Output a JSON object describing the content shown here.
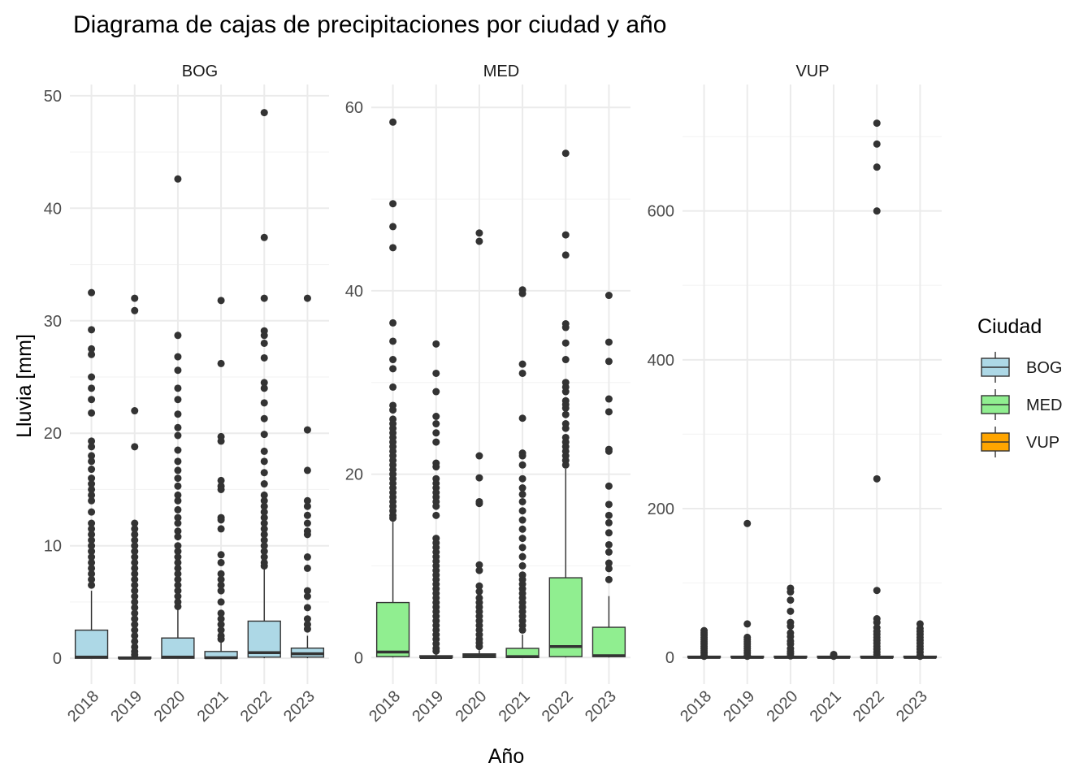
{
  "chart_data": {
    "type": "boxplot",
    "title": "Diagrama de cajas de precipitaciones por ciudad y año",
    "xlabel": "Año",
    "ylabel": "Lluvia [mm]",
    "years": [
      "2018",
      "2019",
      "2020",
      "2021",
      "2022",
      "2023"
    ],
    "facet_scales": "free_y",
    "grid": true,
    "legend": {
      "title": "Ciudad",
      "position": "right",
      "entries": [
        {
          "label": "BOG",
          "color": "#ADD8E6"
        },
        {
          "label": "MED",
          "color": "#90EE90"
        },
        {
          "label": "VUP",
          "color": "#FFA500"
        }
      ]
    },
    "panels": [
      {
        "city": "BOG",
        "fill": "#ADD8E6",
        "ylim": [
          -2.3,
          51
        ],
        "yticks": [
          0,
          10,
          20,
          30,
          40,
          50
        ],
        "boxes": [
          {
            "year": "2018",
            "q1": 0,
            "median": 0.1,
            "q3": 2.5,
            "whisker_low": 0,
            "whisker_high": 6,
            "outliers": [
              32.5,
              29.2,
              27.5,
              27,
              25,
              24,
              23,
              21.8,
              19.3,
              18.8,
              18,
              17.5,
              16.8,
              16,
              15.5,
              15,
              14.5,
              14,
              13,
              12,
              11.5,
              11,
              10.5,
              10,
              9.5,
              9,
              8.5,
              8,
              7.5,
              7,
              6.5
            ]
          },
          {
            "year": "2019",
            "q1": 0,
            "median": 0,
            "q3": 0.1,
            "whisker_low": 0,
            "whisker_high": 0.2,
            "outliers": [
              32,
              30.9,
              22,
              18.8,
              12,
              11.5,
              11,
              10.5,
              10,
              9.5,
              9,
              8.5,
              8,
              7.5,
              7,
              6.5,
              6,
              5.5,
              5,
              4.5,
              4,
              3.5,
              3,
              2.5,
              2,
              1.5,
              1,
              0.6,
              0.3
            ]
          },
          {
            "year": "2020",
            "q1": 0,
            "median": 0.1,
            "q3": 1.8,
            "whisker_low": 0,
            "whisker_high": 4.4,
            "outliers": [
              42.6,
              28.7,
              26.8,
              25.6,
              24,
              23,
              21.7,
              20.5,
              19.8,
              18.5,
              17.5,
              16.7,
              16,
              15.3,
              14.5,
              14,
              13.2,
              12.5,
              12,
              11.3,
              10.8,
              10,
              9.5,
              9,
              8.5,
              8,
              7.5,
              7,
              6.5,
              6,
              5.5,
              5,
              4.6
            ]
          },
          {
            "year": "2021",
            "q1": 0,
            "median": 0.05,
            "q3": 0.6,
            "whisker_low": 0,
            "whisker_high": 1.5,
            "outliers": [
              31.8,
              26.2,
              19.7,
              19.3,
              15.8,
              15.3,
              15,
              12.5,
              12.3,
              11.5,
              9.2,
              8.5,
              7.5,
              7,
              6.5,
              6,
              5,
              4,
              3.5,
              3,
              2.5,
              2,
              1.7
            ]
          },
          {
            "year": "2022",
            "q1": 0.1,
            "median": 0.5,
            "q3": 3.3,
            "whisker_low": 0,
            "whisker_high": 8,
            "outliers": [
              48.5,
              37.4,
              32,
              29.1,
              28.7,
              28,
              26.7,
              24.5,
              24,
              22.7,
              21.3,
              19.9,
              18.4,
              17.5,
              16.5,
              15.5,
              14.5,
              14,
              13.5,
              13,
              12.5,
              12,
              11.5,
              11,
              10.5,
              10,
              9.5,
              9,
              8.5,
              8.2
            ]
          },
          {
            "year": "2023",
            "q1": 0.1,
            "median": 0.4,
            "q3": 0.9,
            "whisker_low": 0,
            "whisker_high": 2,
            "outliers": [
              32,
              20.3,
              16.7,
              14,
              13.5,
              12.7,
              12,
              11.3,
              11,
              9,
              8,
              6,
              5.5,
              4.5,
              3.5,
              3,
              2.6
            ]
          }
        ]
      },
      {
        "city": "MED",
        "fill": "#90EE90",
        "ylim": [
          -2.9,
          62.5
        ],
        "yticks": [
          0,
          20,
          40,
          60
        ],
        "boxes": [
          {
            "year": "2018",
            "q1": 0.1,
            "median": 0.6,
            "q3": 6,
            "whisker_low": 0,
            "whisker_high": 14.8,
            "outliers": [
              58.4,
              49.5,
              47,
              44.7,
              36.5,
              34.5,
              32.5,
              31.5,
              29.5,
              27.5,
              27,
              26,
              25.5,
              25,
              24.5,
              24,
              23.5,
              23,
              22.5,
              22,
              21.5,
              21,
              20.5,
              20,
              19.5,
              19,
              18.5,
              18,
              17.5,
              17,
              16.5,
              16,
              15.5,
              15.2
            ]
          },
          {
            "year": "2019",
            "q1": 0,
            "median": 0,
            "q3": 0.2,
            "whisker_low": 0,
            "whisker_high": 0.5,
            "outliers": [
              34.2,
              31,
              29,
              26.3,
              25.5,
              24.5,
              23.5,
              21.2,
              20.8,
              19.5,
              19,
              18.5,
              18,
              17.5,
              17,
              16.5,
              15.5,
              13,
              12.5,
              12,
              11.5,
              11,
              10.5,
              10,
              9.5,
              9,
              8.5,
              8,
              7.5,
              7,
              6.5,
              6,
              5.5,
              5,
              4.5,
              4,
              3.5,
              3,
              2.5,
              2,
              1.5,
              1,
              0.7
            ]
          },
          {
            "year": "2020",
            "q1": 0,
            "median": 0.2,
            "q3": 0.4,
            "whisker_low": 0,
            "whisker_high": 0.8,
            "outliers": [
              46.3,
              45.4,
              22,
              19.6,
              17,
              16.8,
              10.1,
              9.5,
              7.8,
              7.2,
              6.5,
              6,
              5.5,
              5,
              4.5,
              4,
              3.5,
              3,
              2.5,
              2,
              1.6,
              1.2
            ]
          },
          {
            "year": "2021",
            "q1": 0,
            "median": 0.1,
            "q3": 1,
            "whisker_low": 0,
            "whisker_high": 2.5,
            "outliers": [
              40.1,
              39.7,
              32,
              31,
              26.1,
              22.3,
              22,
              21,
              19.5,
              18.5,
              17.8,
              17,
              16,
              15,
              14,
              13,
              12,
              11,
              10,
              9,
              8.5,
              8,
              7.5,
              7,
              6.5,
              6,
              5.5,
              5,
              4.5,
              4,
              3.5,
              3
            ]
          },
          {
            "year": "2022",
            "q1": 0.1,
            "median": 1.2,
            "q3": 8.7,
            "whisker_low": 0,
            "whisker_high": 20.6,
            "outliers": [
              55,
              46.1,
              43.9,
              36.4,
              36,
              34.3,
              32.5,
              30,
              29.5,
              29,
              28,
              27.6,
              27.2,
              26.5,
              25.5,
              25,
              24,
              23.5,
              23,
              22.5,
              22,
              21.5,
              21
            ]
          },
          {
            "year": "2023",
            "q1": 0.1,
            "median": 0.2,
            "q3": 3.3,
            "whisker_low": 0,
            "whisker_high": 6.7,
            "outliers": [
              39.5,
              34.4,
              32.3,
              28.2,
              26.8,
              22.7,
              22.5,
              18.7,
              16.7,
              15.5,
              14.7,
              13.6,
              12.3,
              11.5,
              10.3,
              9.7,
              8.5
            ]
          }
        ]
      },
      {
        "city": "VUP",
        "fill": "#FFA500",
        "ylim": [
          -35.9,
          770
        ],
        "yticks": [
          0,
          200,
          400,
          600
        ],
        "boxes": [
          {
            "year": "2018",
            "q1": 0,
            "median": 0,
            "q3": 0.3,
            "whisker_low": 0,
            "whisker_high": 0.8,
            "outliers": [
              36,
              33,
              30,
              27,
              24,
              21,
              18,
              15,
              12,
              9,
              6,
              3,
              1.5
            ]
          },
          {
            "year": "2019",
            "q1": 0,
            "median": 0,
            "q3": 0.3,
            "whisker_low": 0,
            "whisker_high": 0.8,
            "outliers": [
              180,
              45,
              27,
              24,
              21,
              18,
              15,
              12,
              9,
              6,
              3,
              1.5
            ]
          },
          {
            "year": "2020",
            "q1": 0,
            "median": 0,
            "q3": 0.3,
            "whisker_low": 0,
            "whisker_high": 0.8,
            "outliers": [
              93,
              88,
              77,
              62,
              47,
              42,
              33,
              28,
              22,
              18,
              12,
              8,
              5,
              2
            ]
          },
          {
            "year": "2021",
            "q1": 0,
            "median": 0,
            "q3": 0.2,
            "whisker_low": 0,
            "whisker_high": 0.5,
            "outliers": [
              4,
              2.5,
              1.5
            ]
          },
          {
            "year": "2022",
            "q1": 0,
            "median": 0,
            "q3": 1,
            "whisker_low": 0,
            "whisker_high": 2.5,
            "outliers": [
              718,
              690,
              659,
              600,
              240,
              90,
              52,
              47,
              40,
              35,
              31,
              27,
              23,
              19,
              15,
              11,
              7,
              4
            ]
          },
          {
            "year": "2023",
            "q1": 0,
            "median": 0,
            "q3": 0.3,
            "whisker_low": 0,
            "whisker_high": 0.8,
            "outliers": [
              45,
              39,
              35,
              31,
              27,
              23,
              19,
              15,
              11,
              7,
              3,
              1.5
            ]
          }
        ]
      }
    ]
  }
}
